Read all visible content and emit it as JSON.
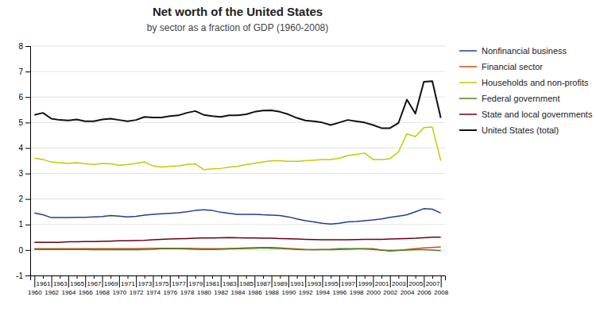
{
  "chart_data": {
    "type": "line",
    "title": "Net worth of the United States",
    "subtitle": "by sector as a fraction of GDP (1960-2008)",
    "x": [
      1960,
      1961,
      1962,
      1963,
      1964,
      1965,
      1966,
      1967,
      1968,
      1969,
      1970,
      1971,
      1972,
      1973,
      1974,
      1975,
      1976,
      1977,
      1978,
      1979,
      1980,
      1981,
      1982,
      1983,
      1984,
      1985,
      1986,
      1987,
      1988,
      1989,
      1990,
      1991,
      1992,
      1993,
      1994,
      1995,
      1996,
      1997,
      1998,
      1999,
      2000,
      2001,
      2002,
      2003,
      2004,
      2005,
      2006,
      2007,
      2008
    ],
    "series": [
      {
        "name": "Nonfinancial business",
        "color": "#1f3f8f",
        "values": [
          1.45,
          1.38,
          1.27,
          1.27,
          1.27,
          1.28,
          1.28,
          1.3,
          1.31,
          1.35,
          1.33,
          1.3,
          1.32,
          1.37,
          1.4,
          1.42,
          1.44,
          1.46,
          1.5,
          1.55,
          1.58,
          1.55,
          1.48,
          1.44,
          1.4,
          1.4,
          1.4,
          1.38,
          1.37,
          1.35,
          1.3,
          1.22,
          1.15,
          1.1,
          1.05,
          1.02,
          1.05,
          1.1,
          1.12,
          1.15,
          1.18,
          1.22,
          1.28,
          1.33,
          1.38,
          1.5,
          1.62,
          1.6,
          1.45
        ]
      },
      {
        "name": "Financial sector",
        "color": "#c85010",
        "values": [
          0.05,
          0.05,
          0.05,
          0.05,
          0.05,
          0.05,
          0.05,
          0.05,
          0.05,
          0.05,
          0.05,
          0.05,
          0.05,
          0.06,
          0.07,
          0.07,
          0.07,
          0.07,
          0.07,
          0.06,
          0.05,
          0.05,
          0.05,
          0.06,
          0.07,
          0.08,
          0.09,
          0.1,
          0.1,
          0.08,
          0.06,
          0.04,
          0.02,
          0.01,
          0.01,
          0.01,
          0.02,
          0.03,
          0.04,
          0.05,
          0.05,
          0.0,
          -0.04,
          -0.02,
          0.02,
          0.05,
          0.08,
          0.1,
          0.12
        ]
      },
      {
        "name": "Households and non-profits",
        "color": "#c8c800",
        "values": [
          3.6,
          3.55,
          3.45,
          3.42,
          3.4,
          3.42,
          3.38,
          3.35,
          3.4,
          3.38,
          3.32,
          3.35,
          3.4,
          3.45,
          3.3,
          3.25,
          3.28,
          3.3,
          3.35,
          3.38,
          3.15,
          3.18,
          3.2,
          3.25,
          3.28,
          3.35,
          3.4,
          3.45,
          3.5,
          3.5,
          3.48,
          3.48,
          3.5,
          3.52,
          3.55,
          3.55,
          3.6,
          3.7,
          3.75,
          3.8,
          3.55,
          3.55,
          3.58,
          3.85,
          4.55,
          4.45,
          4.8,
          4.82,
          3.5
        ]
      },
      {
        "name": "Federal government",
        "color": "#508020",
        "values": [
          0.02,
          0.02,
          0.02,
          0.02,
          0.02,
          0.02,
          0.02,
          0.01,
          0.01,
          0.01,
          0.01,
          0.01,
          0.01,
          0.02,
          0.03,
          0.05,
          0.05,
          0.05,
          0.04,
          0.03,
          0.02,
          0.02,
          0.03,
          0.04,
          0.05,
          0.06,
          0.07,
          0.08,
          0.07,
          0.06,
          0.04,
          0.02,
          0.01,
          0.01,
          0.02,
          0.03,
          0.05,
          0.05,
          0.05,
          0.04,
          0.02,
          0.0,
          -0.02,
          -0.01,
          0.0,
          0.01,
          0.01,
          0.0,
          -0.03
        ]
      },
      {
        "name": "State and local governments",
        "color": "#6a0010",
        "values": [
          0.3,
          0.3,
          0.3,
          0.3,
          0.32,
          0.32,
          0.33,
          0.33,
          0.34,
          0.35,
          0.36,
          0.36,
          0.37,
          0.38,
          0.4,
          0.42,
          0.43,
          0.44,
          0.45,
          0.46,
          0.47,
          0.47,
          0.48,
          0.49,
          0.48,
          0.47,
          0.47,
          0.46,
          0.46,
          0.45,
          0.44,
          0.43,
          0.42,
          0.41,
          0.4,
          0.4,
          0.4,
          0.4,
          0.41,
          0.42,
          0.42,
          0.42,
          0.43,
          0.44,
          0.45,
          0.46,
          0.48,
          0.5,
          0.5
        ]
      },
      {
        "name": "United States (total)",
        "color": "#111111",
        "values": [
          5.3,
          5.38,
          5.15,
          5.1,
          5.08,
          5.12,
          5.05,
          5.05,
          5.12,
          5.15,
          5.1,
          5.05,
          5.1,
          5.22,
          5.2,
          5.2,
          5.25,
          5.28,
          5.38,
          5.45,
          5.3,
          5.25,
          5.22,
          5.28,
          5.28,
          5.32,
          5.42,
          5.47,
          5.48,
          5.42,
          5.32,
          5.18,
          5.08,
          5.05,
          5.0,
          4.9,
          5.0,
          5.1,
          5.05,
          5.0,
          4.9,
          4.78,
          4.78,
          4.98,
          5.9,
          5.35,
          6.6,
          6.62,
          5.18
        ]
      }
    ],
    "xlim": [
      1959.5,
      2008.5
    ],
    "xticks": [
      1960,
      1961,
      1962,
      1963,
      1964,
      1965,
      1966,
      1967,
      1968,
      1969,
      1970,
      1971,
      1972,
      1973,
      1974,
      1975,
      1976,
      1977,
      1978,
      1979,
      1980,
      1981,
      1982,
      1983,
      1984,
      1985,
      1986,
      1987,
      1988,
      1989,
      1990,
      1991,
      1992,
      1993,
      1994,
      1995,
      1996,
      1997,
      1998,
      1999,
      2000,
      2001,
      2002,
      2003,
      2004,
      2005,
      2006,
      2007,
      2008
    ],
    "ylim": [
      -1,
      8
    ],
    "yticks": [
      -1,
      0,
      1,
      2,
      3,
      4,
      5,
      6,
      7,
      8
    ],
    "grid": true,
    "legend": "right"
  }
}
